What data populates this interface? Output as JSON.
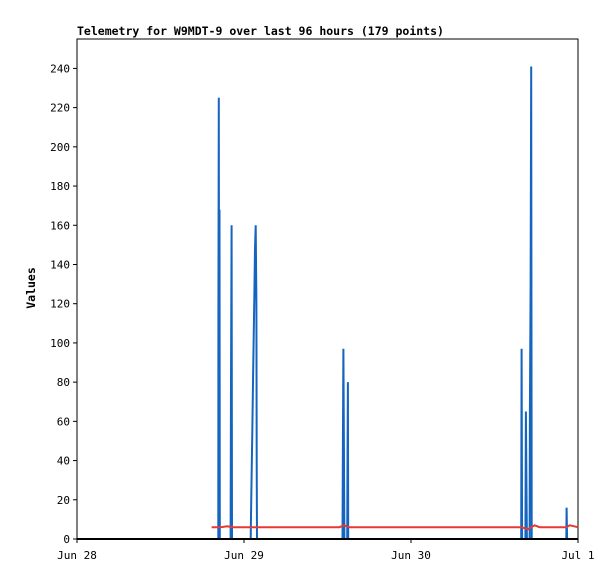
{
  "chart_data": {
    "type": "line",
    "title": "Telemetry for W9MDT-9 over last 96 hours (179 points)",
    "xlabel": "",
    "ylabel": "Values",
    "xlim": [
      0,
      3
    ],
    "ylim": [
      0,
      255
    ],
    "x_ticks": [
      {
        "label": "Jun 28",
        "x": 0
      },
      {
        "label": "Jun 29",
        "x": 1
      },
      {
        "label": "Jun 30",
        "x": 2
      },
      {
        "label": "Jul 1",
        "x": 3
      }
    ],
    "y_ticks": [
      0,
      20,
      40,
      60,
      80,
      100,
      120,
      140,
      160,
      180,
      200,
      220,
      240
    ],
    "grid": false,
    "series": [
      {
        "name": "",
        "color": "#1565c0",
        "points": [
          [
            0.846,
            0
          ],
          [
            0.847,
            112
          ],
          [
            0.849,
            225
          ],
          [
            0.851,
            57
          ],
          [
            0.853,
            168
          ],
          [
            0.855,
            0
          ],
          [
            0.92,
            0
          ],
          [
            0.922,
            80
          ],
          [
            0.926,
            160
          ],
          [
            0.928,
            0
          ],
          [
            1.04,
            0
          ],
          [
            1.042,
            12
          ],
          [
            1.046,
            35
          ],
          [
            1.05,
            58
          ],
          [
            1.054,
            80
          ],
          [
            1.058,
            103
          ],
          [
            1.062,
            126
          ],
          [
            1.066,
            148
          ],
          [
            1.07,
            160
          ],
          [
            1.074,
            120
          ],
          [
            1.076,
            40
          ],
          [
            1.078,
            0
          ],
          [
            1.59,
            0
          ],
          [
            1.592,
            48
          ],
          [
            1.595,
            97
          ],
          [
            1.598,
            48
          ],
          [
            1.601,
            0
          ],
          [
            1.618,
            0
          ],
          [
            1.62,
            40
          ],
          [
            1.622,
            80
          ],
          [
            1.624,
            0
          ],
          [
            2.66,
            0
          ],
          [
            2.662,
            97
          ],
          [
            2.665,
            0
          ],
          [
            2.685,
            0
          ],
          [
            2.688,
            65
          ],
          [
            2.691,
            32
          ],
          [
            2.694,
            0
          ],
          [
            2.71,
            0
          ],
          [
            2.712,
            65
          ],
          [
            2.716,
            128
          ],
          [
            2.72,
            241
          ],
          [
            2.723,
            0
          ],
          [
            2.93,
            0
          ],
          [
            2.932,
            16
          ],
          [
            2.935,
            0
          ]
        ]
      },
      {
        "name": "",
        "color": "#e53935",
        "points": [
          [
            0.806,
            6
          ],
          [
            0.86,
            6
          ],
          [
            0.9,
            6.5
          ],
          [
            0.93,
            6
          ],
          [
            1.57,
            6
          ],
          [
            1.6,
            7
          ],
          [
            1.63,
            6
          ],
          [
            2.66,
            6
          ],
          [
            2.7,
            5
          ],
          [
            2.72,
            6
          ],
          [
            2.74,
            7
          ],
          [
            2.77,
            6
          ],
          [
            2.93,
            6
          ],
          [
            2.95,
            7
          ],
          [
            3.0,
            6
          ]
        ]
      },
      {
        "name": "",
        "color": "#000000",
        "points": [
          [
            0,
            0
          ],
          [
            3,
            0
          ]
        ]
      }
    ]
  }
}
